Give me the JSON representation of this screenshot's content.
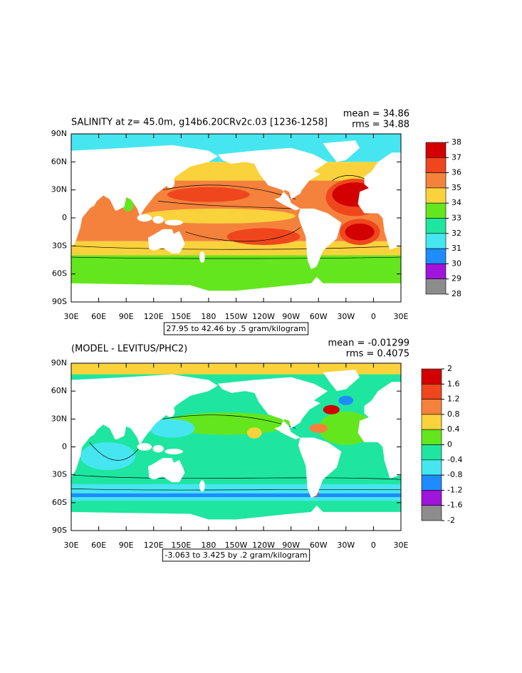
{
  "panels": [
    {
      "title": "SALINITY at z=  45.0m, g14b6.20CRv2c.03 [1236-1258]",
      "mean": "mean = 34.86",
      "rms": "rms = 34.88",
      "lat_labels": [
        "90N",
        "60N",
        "30N",
        "0",
        "30S",
        "60S",
        "90S"
      ],
      "lon_labels": [
        "30E",
        "60E",
        "90E",
        "120E",
        "150E",
        "180",
        "150W",
        "120W",
        "90W",
        "60W",
        "30W",
        "0",
        "30E"
      ],
      "contour_info": "27.95 to 42.46 by .5 gram/kilogram",
      "colorbar": {
        "ticks": [
          38,
          37,
          36,
          35,
          34,
          33,
          32,
          31,
          30,
          29,
          28
        ],
        "colors": [
          "#d20000",
          "#f0461e",
          "#f5823c",
          "#fad23c",
          "#64e61e",
          "#1ee6a0",
          "#46e6f0",
          "#1e8cff",
          "#a014dc",
          "#8c8c8c"
        ]
      }
    },
    {
      "title": "(MODEL - LEVITUS/PHC2)",
      "mean": "mean = -0.01299",
      "rms": "rms = 0.4075",
      "lat_labels": [
        "90N",
        "60N",
        "30N",
        "0",
        "30S",
        "60S",
        "90S"
      ],
      "lon_labels": [
        "30E",
        "60E",
        "90E",
        "120E",
        "150E",
        "180",
        "150W",
        "120W",
        "90W",
        "60W",
        "30W",
        "0",
        "30E"
      ],
      "contour_info": "-3.063 to 3.425 by .2 gram/kilogram",
      "colorbar": {
        "ticks": [
          2,
          1.6,
          1.2,
          0.8,
          0.4,
          0,
          -0.4,
          -0.8,
          -1.2,
          -1.6,
          -2
        ],
        "colors": [
          "#d20000",
          "#f0461e",
          "#f5823c",
          "#fad23c",
          "#64e61e",
          "#1ee6a0",
          "#46e6f0",
          "#1e8cff",
          "#a014dc",
          "#8c8c8c"
        ]
      }
    }
  ]
}
